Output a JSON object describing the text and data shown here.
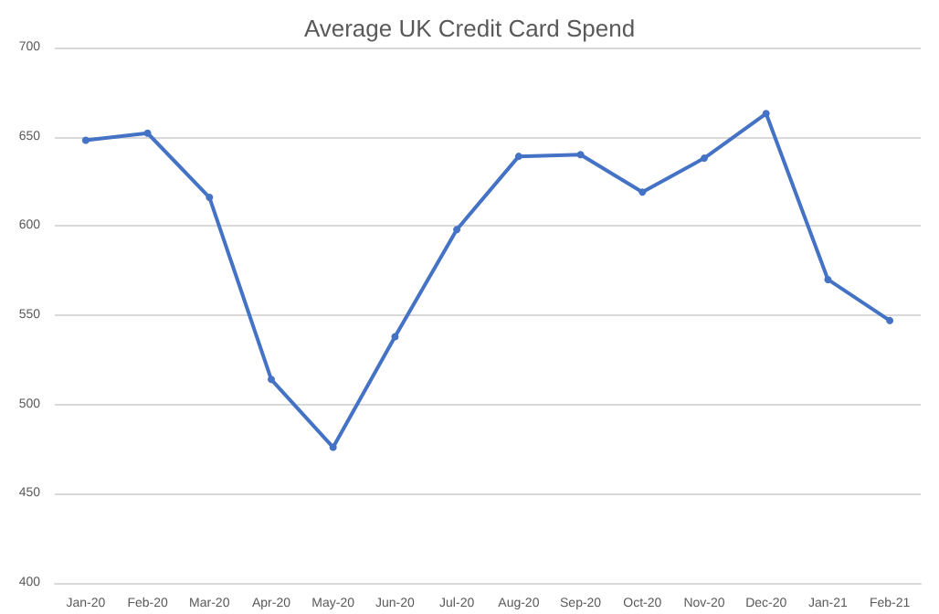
{
  "chart_data": {
    "type": "line",
    "title": "Average UK Credit Card Spend",
    "categories": [
      "Jan-20",
      "Feb-20",
      "Mar-20",
      "Apr-20",
      "May-20",
      "Jun-20",
      "Jul-20",
      "Aug-20",
      "Sep-20",
      "Oct-20",
      "Nov-20",
      "Dec-20",
      "Jan-21",
      "Feb-21"
    ],
    "series": [
      {
        "color": "#4472c4",
        "values": [
          648,
          652,
          616,
          514,
          476,
          538,
          598,
          639,
          640,
          619,
          638,
          663,
          570,
          547
        ]
      }
    ],
    "ylim": [
      400,
      700
    ],
    "yticks": [
      400,
      450,
      500,
      550,
      600,
      650,
      700
    ],
    "grid": "y",
    "marker": "circle",
    "line_style": "solid"
  }
}
